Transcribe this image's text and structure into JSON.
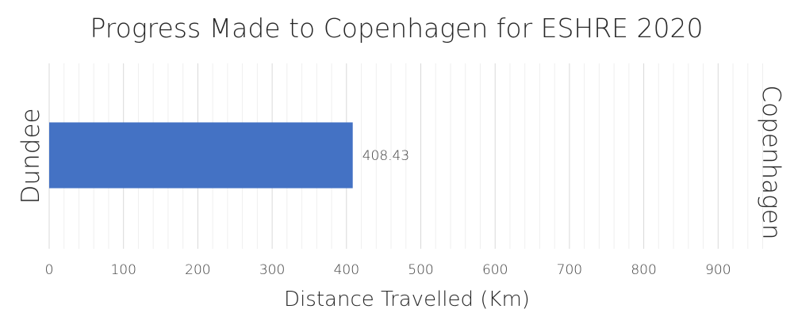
{
  "chart_data": {
    "type": "bar",
    "orientation": "horizontal",
    "title": "Progress Made to Copenhagen for ESHRE 2020",
    "xlabel": "Distance Travelled (Km)",
    "ylabel": "",
    "start_label": "Dundee",
    "end_label": "Copenhagen",
    "categories": [
      "Dundee"
    ],
    "values": [
      408.43
    ],
    "data_labels": [
      "408.43"
    ],
    "xlim": [
      0,
      960
    ],
    "xticks": [
      0,
      100,
      200,
      300,
      400,
      500,
      600,
      700,
      800,
      900
    ],
    "grid": true,
    "bar_color": "#4472c4"
  }
}
